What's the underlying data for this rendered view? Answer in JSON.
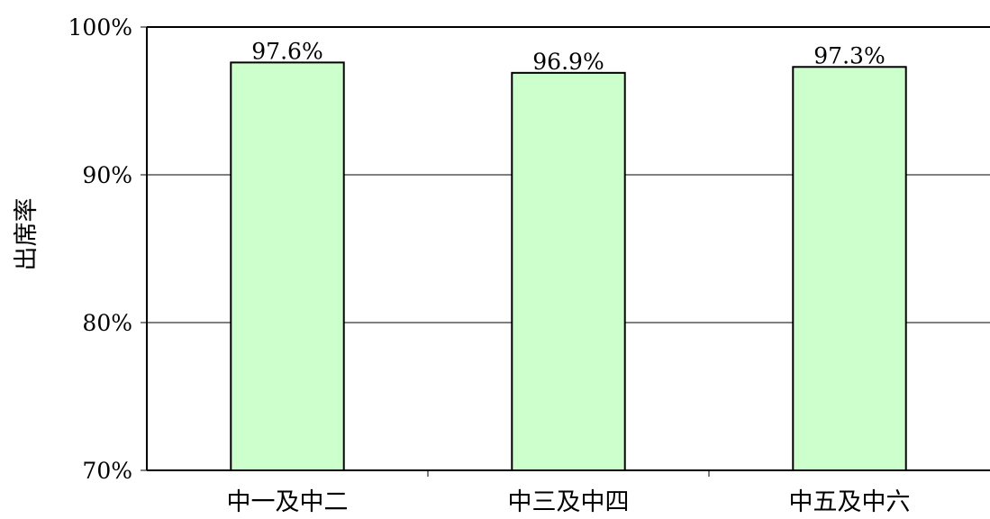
{
  "chart_data": {
    "type": "bar",
    "title": "",
    "xlabel": "",
    "ylabel": "出席率",
    "categories": [
      "中一及中二",
      "中三及中四",
      "中五及中六"
    ],
    "values": [
      97.6,
      96.9,
      97.3
    ],
    "data_labels": [
      "97.6%",
      "96.9%",
      "97.3%"
    ],
    "ylim": [
      70,
      100
    ],
    "yticks": [
      70,
      80,
      90,
      100
    ],
    "ytick_labels": [
      "70%",
      "80%",
      "90%",
      "100%"
    ],
    "grid": true,
    "legend": "none",
    "bar_fill_color": "#ccffcc",
    "bar_stroke_color": "#000000",
    "grid_color": "#000000"
  }
}
